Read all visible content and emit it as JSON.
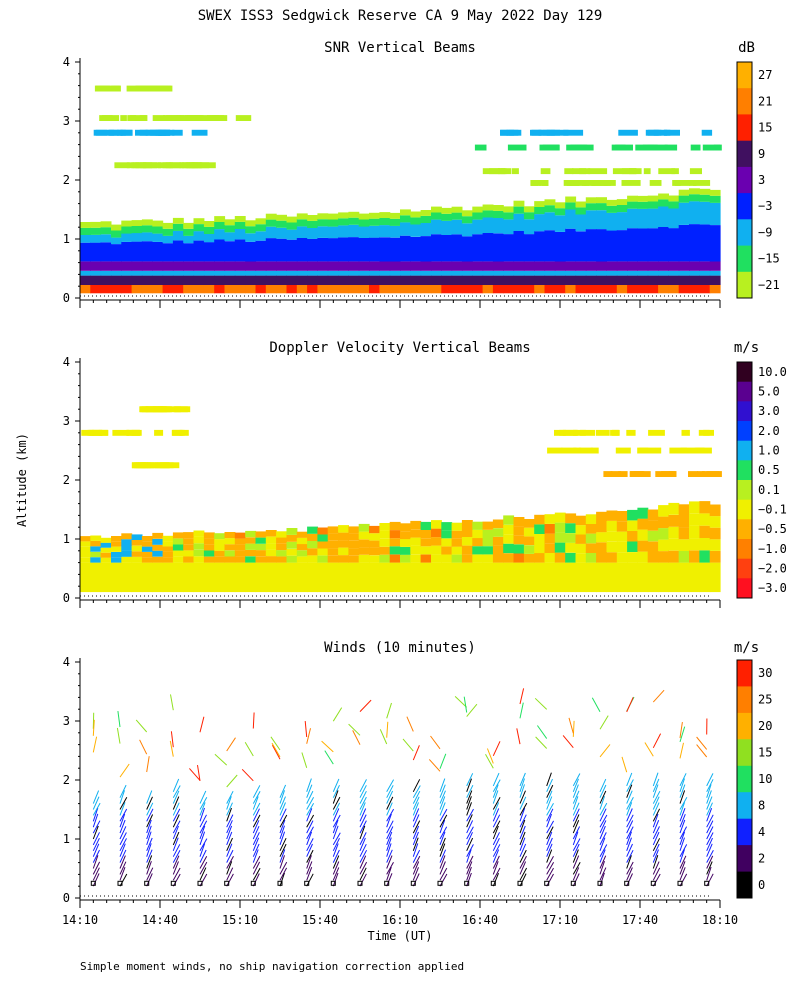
{
  "figure": {
    "title": "SWEX ISS3 Sedgwick Reserve CA   9 May 2022 Day 129",
    "ylabel": "Altitude (km)",
    "xlabel": "Time (UT)",
    "footnote": "Simple moment winds, no ship navigation correction applied"
  },
  "chart_data": [
    {
      "type": "heatmap",
      "title": "SNR Vertical Beams",
      "ylabel": "Altitude (km)",
      "xlim": [
        "14:10",
        "18:10"
      ],
      "ylim": [
        0,
        4
      ],
      "yticks": [
        "0",
        "1",
        "2",
        "3",
        "4"
      ],
      "colorbar": {
        "unit": "dB",
        "labels": [
          "27",
          "21",
          "15",
          "9",
          "3",
          "−3",
          "−9",
          "−15",
          "−21"
        ],
        "colors": [
          "#ffb000",
          "#ff7f00",
          "#ff2000",
          "#401060",
          "#6a00b0",
          "#0020ff",
          "#10b0f0",
          "#20e060",
          "#b8f020"
        ]
      }
    },
    {
      "type": "heatmap",
      "title": "Doppler Velocity Vertical Beams",
      "ylabel": "Altitude (km)",
      "xlim": [
        "14:10",
        "18:10"
      ],
      "ylim": [
        0,
        4
      ],
      "yticks": [
        "0",
        "1",
        "2",
        "3",
        "4"
      ],
      "colorbar": {
        "unit": "m/s",
        "labels": [
          "10.0",
          "5.0",
          "3.0",
          "2.0",
          "1.0",
          "0.5",
          "0.1",
          "−0.1",
          "−0.5",
          "−1.0",
          "−2.0",
          "−3.0"
        ],
        "colors": [
          "#300020",
          "#5a0090",
          "#3010d0",
          "#0040ff",
          "#10b0f0",
          "#20e060",
          "#b8f020",
          "#f0f000",
          "#ffb000",
          "#ff8000",
          "#ff4010",
          "#ff1020"
        ]
      }
    },
    {
      "type": "scatter",
      "title": "Winds (10 minutes)",
      "xlabel": "Time (UT)",
      "ylabel": "Altitude (km)",
      "xlim": [
        "14:10",
        "18:10"
      ],
      "ylim": [
        0,
        4
      ],
      "yticks": [
        "0",
        "1",
        "2",
        "3",
        "4"
      ],
      "xticks": [
        "14:10",
        "14:40",
        "15:10",
        "15:40",
        "16:10",
        "16:40",
        "17:10",
        "17:40",
        "18:10"
      ],
      "colorbar": {
        "unit": "m/s",
        "labels": [
          "30",
          "25",
          "20",
          "15",
          "10",
          "8",
          "4",
          "2",
          "0"
        ],
        "colors": [
          "#ff2000",
          "#ff7f00",
          "#ffb000",
          "#90e020",
          "#20e060",
          "#10b0f0",
          "#1020ff",
          "#400060",
          "#000000"
        ]
      }
    }
  ]
}
